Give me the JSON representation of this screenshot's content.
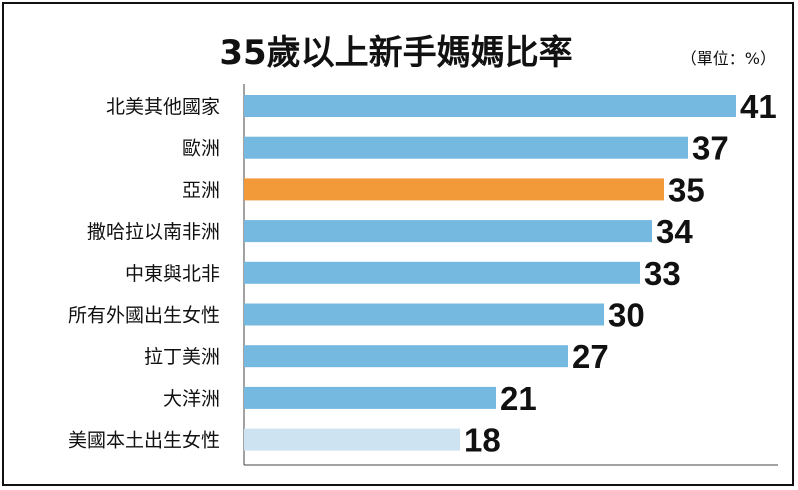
{
  "chart_data": {
    "type": "bar",
    "orientation": "horizontal",
    "title": "35歲以上新手媽媽比率",
    "unit_note": "（單位：%）",
    "categories": [
      "北美其他國家",
      "歐洲",
      "亞洲",
      "撒哈拉以南非洲",
      "中東與北非",
      "所有外國出生女性",
      "拉丁美洲",
      "大洋洲",
      "美國本土出生女性"
    ],
    "values": [
      41,
      37,
      35,
      34,
      33,
      30,
      27,
      21,
      18
    ],
    "value_labels": [
      "41",
      "37",
      "35",
      "34",
      "33",
      "30",
      "27",
      "21",
      "18"
    ],
    "bar_colors": [
      "#76b9e0",
      "#76b9e0",
      "#f29a3a",
      "#76b9e0",
      "#76b9e0",
      "#76b9e0",
      "#76b9e0",
      "#76b9e0",
      "#cde3f1"
    ],
    "xlim": [
      0,
      41
    ],
    "grid": false,
    "legend": "none"
  }
}
